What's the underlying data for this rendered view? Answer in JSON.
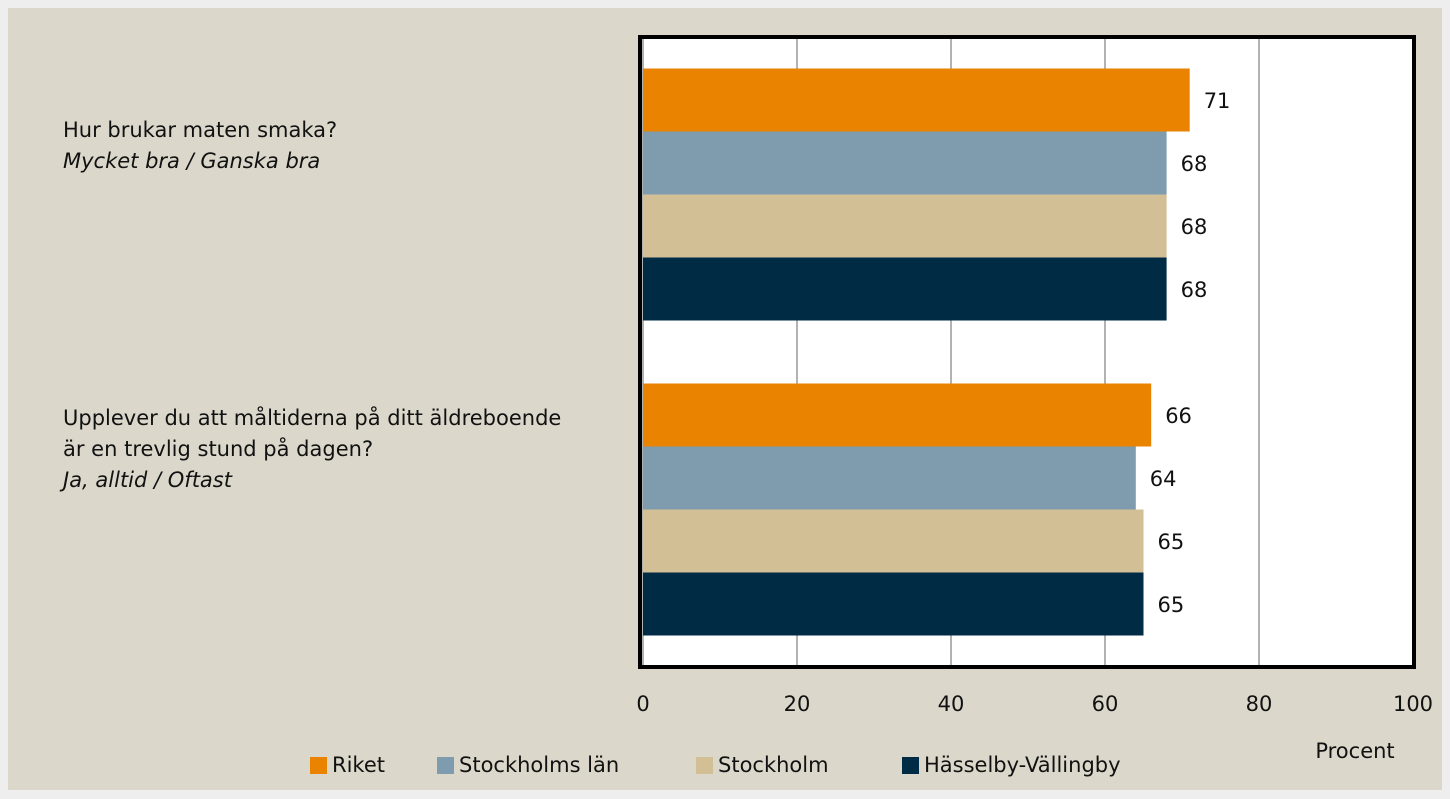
{
  "chart_data": {
    "type": "hbar",
    "categories": [
      "Hur brukar maten smaka?",
      "Upplever du att måltiderna på ditt äldreboende är en trevlig stund på dagen?"
    ],
    "category_notes": [
      "Mycket bra / Ganska bra",
      "Ja, alltid / Oftast"
    ],
    "series": [
      {
        "name": "Riket",
        "color": "#e98300",
        "values": [
          71,
          66
        ]
      },
      {
        "name": "Stockholms län",
        "color": "#7f9cae",
        "values": [
          68,
          64
        ]
      },
      {
        "name": "Stockholm",
        "color": "#d3bf96",
        "values": [
          68,
          65
        ]
      },
      {
        "name": "Hässelby-Vällingby",
        "color": "#002b45",
        "values": [
          68,
          65
        ]
      }
    ],
    "x_label": "Procent",
    "xlim": [
      0,
      100
    ],
    "xticks": [
      0,
      20,
      40,
      60,
      80,
      100
    ],
    "grid": true,
    "legend": "bottom"
  }
}
